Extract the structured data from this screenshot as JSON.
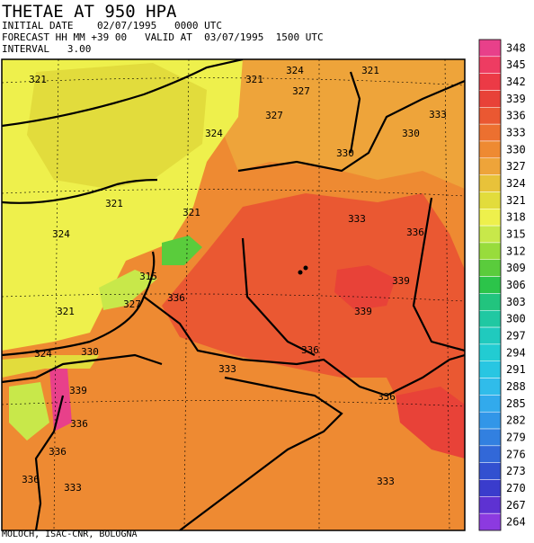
{
  "header": {
    "title": "THETAE AT 950 HPA",
    "lines": [
      "INITIAL DATE    02/07/1995   0000 UTC",
      "FORECAST HH MM +39 00   VALID AT  03/07/1995  1500 UTC",
      "INTERVAL   3.00"
    ]
  },
  "colorbar": {
    "levels": [
      348,
      345,
      342,
      339,
      336,
      333,
      330,
      327,
      324,
      321,
      318,
      315,
      312,
      309,
      306,
      303,
      300,
      297,
      294,
      291,
      288,
      285,
      282,
      279,
      276,
      273,
      270,
      267,
      264
    ],
    "colors": [
      "#e8408a",
      "#ee3c62",
      "#ec3a46",
      "#e84238",
      "#ea5832",
      "#ec7030",
      "#ee8a32",
      "#eea43a",
      "#e8c23a",
      "#e2dc3c",
      "#eef04c",
      "#c8e84a",
      "#98dc3c",
      "#5acc3c",
      "#2cc44a",
      "#22c47e",
      "#20c8a2",
      "#20cabe",
      "#22ccd2",
      "#28c6e2",
      "#30bcea",
      "#32aaec",
      "#3296e8",
      "#3280e0",
      "#3268d8",
      "#3250d0",
      "#3a3ccc",
      "#5e32d2",
      "#8c3ae0"
    ]
  },
  "contour_labels": [
    321,
    321,
    324,
    327,
    321,
    333,
    327,
    324,
    330,
    330,
    321,
    321,
    333,
    336,
    324,
    315,
    336,
    327,
    339,
    339,
    321,
    324,
    330,
    336,
    333,
    339,
    336,
    336,
    336,
    336,
    333,
    333
  ],
  "footer": "MOLOCH, ISAC-CNR, BOLOGNA"
}
